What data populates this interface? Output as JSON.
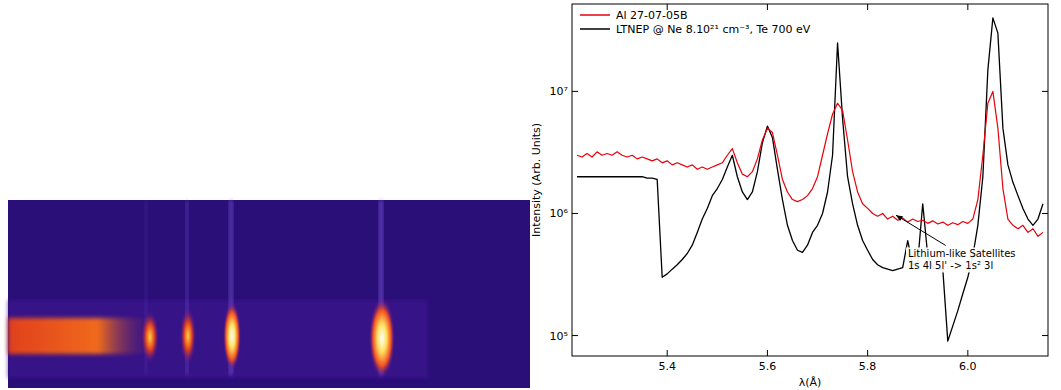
{
  "chart_data": {
    "type": "line",
    "x_label": "λ(Å)",
    "y_label": "Intensity (Arb. Units)",
    "log": "y",
    "grid": false,
    "legend": "upper-left",
    "xlim": [
      5.21,
      6.16
    ],
    "ylim": [
      68000,
      52000000
    ],
    "xticks": [
      5.4,
      5.6,
      5.8,
      {
        "value": 6,
        "label": "6.0"
      }
    ],
    "yticks": [
      {
        "value": 100000,
        "label": "10⁵"
      },
      {
        "value": 1000000,
        "label": "10⁶"
      },
      {
        "value": 10000000,
        "label": "10⁷"
      }
    ],
    "annotation": [
      "Lithium-like Satellites",
      "1s 4l 5l' -> 1s² 3l"
    ],
    "x": [
      5.22,
      5.23,
      5.24,
      5.25,
      5.26,
      5.27,
      5.28,
      5.29,
      5.3,
      5.31,
      5.32,
      5.33,
      5.34,
      5.35,
      5.36,
      5.37,
      5.38,
      5.39,
      5.4,
      5.41,
      5.42,
      5.43,
      5.44,
      5.45,
      5.46,
      5.47,
      5.48,
      5.49,
      5.5,
      5.51,
      5.52,
      5.53,
      5.54,
      5.55,
      5.56,
      5.57,
      5.58,
      5.59,
      5.6,
      5.61,
      5.62,
      5.63,
      5.64,
      5.65,
      5.66,
      5.67,
      5.68,
      5.69,
      5.7,
      5.71,
      5.72,
      5.73,
      5.74,
      5.75,
      5.76,
      5.77,
      5.78,
      5.79,
      5.8,
      5.81,
      5.82,
      5.83,
      5.84,
      5.85,
      5.86,
      5.87,
      5.88,
      5.89,
      5.9,
      5.91,
      5.92,
      5.93,
      5.94,
      5.95,
      5.96,
      5.97,
      5.98,
      5.99,
      6.0,
      6.01,
      6.02,
      6.03,
      6.04,
      6.05,
      6.06,
      6.07,
      6.08,
      6.09,
      6.1,
      6.11,
      6.12,
      6.13,
      6.14,
      6.15
    ],
    "series": [
      {
        "name": "Al  27-07-05B",
        "color": "#e8000b",
        "line_style": "solid",
        "values": [
          3000000,
          2900000,
          3100000,
          2900000,
          3200000,
          3000000,
          3100000,
          3000000,
          3200000,
          3000000,
          2900000,
          3000000,
          2800000,
          2900000,
          2800000,
          2700000,
          2800000,
          2600000,
          2700000,
          2500000,
          2600000,
          2500000,
          2400000,
          2500000,
          2300000,
          2400000,
          2300000,
          2400000,
          2500000,
          2600000,
          3000000,
          3400000,
          2600000,
          2100000,
          2000000,
          2200000,
          2800000,
          4000000,
          5000000,
          4600000,
          3000000,
          1900000,
          1500000,
          1300000,
          1250000,
          1300000,
          1400000,
          1600000,
          2000000,
          3000000,
          4500000,
          6500000,
          8000000,
          7000000,
          4000000,
          2200000,
          1500000,
          1200000,
          1100000,
          1000000,
          950000,
          1000000,
          900000,
          950000,
          880000,
          920000,
          850000,
          900000,
          860000,
          880000,
          830000,
          870000,
          820000,
          850000,
          800000,
          840000,
          810000,
          860000,
          830000,
          900000,
          1300000,
          3000000,
          8000000,
          10000000,
          5000000,
          1600000,
          900000,
          800000,
          750000,
          800000,
          700000,
          750000,
          650000,
          700000
        ]
      },
      {
        "name": "LTNEP @ Ne 8.10²¹ cm⁻³, Te 700 eV",
        "color": "#000000",
        "line_style": "solid",
        "values": [
          2000000,
          2000000,
          2000000,
          2000000,
          2000000,
          2000000,
          2000000,
          2000000,
          2000000,
          2000000,
          2000000,
          2000000,
          2000000,
          2000000,
          1950000,
          1950000,
          1900000,
          300000,
          320000,
          350000,
          380000,
          420000,
          470000,
          550000,
          700000,
          900000,
          1100000,
          1400000,
          1600000,
          1900000,
          2400000,
          3000000,
          2000000,
          1500000,
          1300000,
          1500000,
          2200000,
          3800000,
          5200000,
          4200000,
          2300000,
          1300000,
          800000,
          600000,
          500000,
          480000,
          550000,
          700000,
          800000,
          1000000,
          1500000,
          3000000,
          25000000,
          6000000,
          2000000,
          1200000,
          800000,
          600000,
          500000,
          420000,
          380000,
          360000,
          350000,
          340000,
          350000,
          360000,
          600000,
          380000,
          400000,
          1200000,
          450000,
          360000,
          350000,
          350000,
          90000,
          120000,
          160000,
          220000,
          300000,
          450000,
          800000,
          2000000,
          15000000,
          40000000,
          30000000,
          5000000,
          2500000,
          1800000,
          1400000,
          1100000,
          900000,
          800000,
          900000,
          1200000
        ]
      }
    ]
  }
}
